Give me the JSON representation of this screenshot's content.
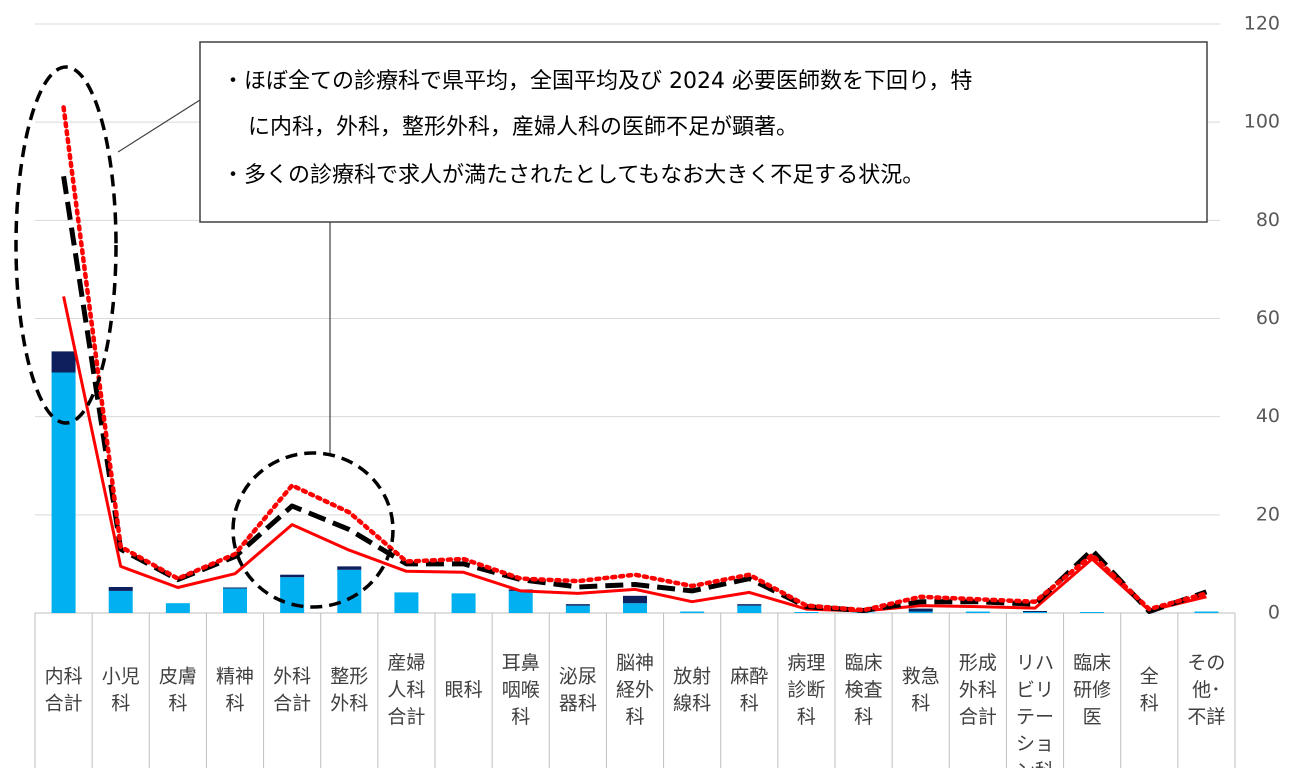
{
  "chart_data": {
    "type": "bar",
    "categories": [
      "内科\n合計",
      "小児\n科",
      "皮膚\n科",
      "精神\n科",
      "外科\n合計",
      "整形\n外科",
      "産婦\n人科\n合計",
      "眼科",
      "耳鼻\n咽喉\n科",
      "泌尿\n器科",
      "脳神\n経外\n科",
      "放射\n線科",
      "麻酔\n科",
      "病理\n診断\n科",
      "臨床\n検査\n科",
      "救急\n科",
      "形成\n外科\n合計",
      "リハ\nビリ\nテー\nショ\nン科",
      "臨床\n研修\n医",
      "全\n科",
      "その\n他･\n不詳"
    ],
    "series": [
      {
        "type": "bar",
        "color": "#00b0f0",
        "values": [
          49,
          4.5,
          2,
          5,
          7.3,
          8.8,
          4.2,
          4,
          4.5,
          1.5,
          2,
          0.3,
          1.5,
          0.2,
          0.1,
          0.3,
          0.3,
          0.2,
          0.2,
          0,
          0.3
        ]
      },
      {
        "type": "bar",
        "color": "#0d1f5c",
        "values": [
          4.3,
          0.8,
          0,
          0.2,
          0.5,
          0.7,
          0,
          0,
          0.3,
          0.3,
          1.5,
          0,
          0.3,
          0,
          0,
          0.6,
          0,
          0.2,
          0,
          0,
          0
        ]
      },
      {
        "type": "line",
        "style": "solid",
        "color": "#ff0000",
        "values": [
          64.5,
          9.5,
          5.2,
          8,
          18,
          12.8,
          8.5,
          8.3,
          4.5,
          4,
          4.8,
          2.3,
          4.2,
          0.8,
          0.4,
          1.5,
          1.3,
          1,
          11,
          0.5,
          3.3
        ]
      },
      {
        "type": "line",
        "style": "dashed",
        "color": "#000000",
        "values": [
          89,
          13,
          6.8,
          11.5,
          21.8,
          17,
          10,
          10,
          6.8,
          5.3,
          5.8,
          4.5,
          7,
          1.3,
          0.5,
          2.3,
          2.3,
          1.8,
          12.8,
          0.3,
          4.3
        ]
      },
      {
        "type": "line",
        "style": "dotted",
        "color": "#ff0000",
        "values": [
          103,
          13.5,
          7,
          12,
          26,
          20.5,
          10.5,
          11,
          7,
          6.5,
          7.8,
          5.5,
          7.8,
          1.5,
          0.6,
          3.3,
          2.8,
          2.3,
          11.8,
          0.8,
          4
        ]
      }
    ],
    "ylim": [
      0,
      120
    ],
    "yticks": [
      0,
      20,
      40,
      60,
      80,
      100,
      120
    ],
    "grid": true,
    "y_axis_side": "right",
    "annotation": [
      "・ほぼ全ての診療科で県平均，全国平均及び 2024 必要医師数を下回り，特",
      "に内科，外科，整形外科，産婦人科の医師不足が顕著。",
      "・多くの診療科で求人が満たされたとしてもなお大きく不足する状況。"
    ]
  }
}
